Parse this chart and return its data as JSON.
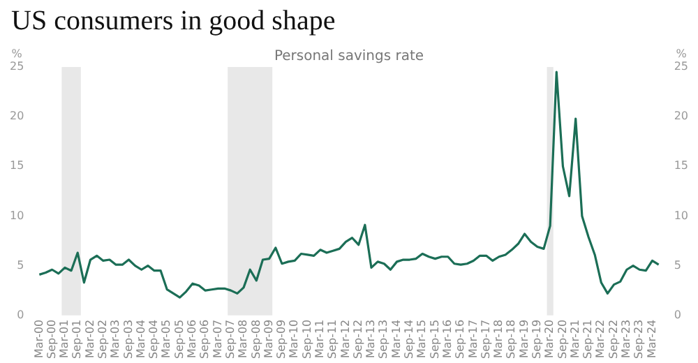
{
  "chart_data": {
    "type": "line",
    "title": "US consumers in good shape",
    "subtitle": "Personal savings rate",
    "ylabel": "%",
    "y2label": "%",
    "categories": [
      "Mar-00",
      null,
      "Sep-00",
      null,
      "Mar-01",
      null,
      "Sep-01",
      null,
      "Mar-02",
      null,
      "Sep-02",
      null,
      "Mar-03",
      null,
      "Sep-03",
      null,
      "Mar-04",
      null,
      "Sep-04",
      null,
      "Mar-05",
      null,
      "Sep-05",
      null,
      "Mar-06",
      null,
      "Sep-06",
      null,
      "Mar-07",
      null,
      "Sep-07",
      null,
      "Mar-08",
      null,
      "Sep-08",
      null,
      "Mar-09",
      null,
      "Sep-09",
      null,
      "Mar-10",
      null,
      "Sep-10",
      null,
      "Mar-11",
      null,
      "Sep-11",
      null,
      "Mar-12",
      null,
      "Sep-12",
      null,
      "Mar-13",
      null,
      "Sep-13",
      null,
      "Mar-14",
      null,
      "Sep-14",
      null,
      "Mar-15",
      null,
      "Sep-15",
      null,
      "Mar-16",
      null,
      "Sep-16",
      null,
      "Mar-17",
      null,
      "Sep-17",
      null,
      "Mar-18",
      null,
      "Sep-18",
      null,
      "Mar-19",
      null,
      "Sep-19",
      null,
      "Mar-20",
      null,
      "Sep-20",
      null,
      "Mar-21",
      null,
      "Sep-21",
      null,
      "Mar-22",
      null,
      "Sep-22",
      null,
      "Mar-23",
      null,
      "Sep-23",
      null,
      "Mar-24",
      null
    ],
    "series": [
      {
        "color": "#1b6e56",
        "values": [
          4.1,
          4.3,
          4.6,
          4.2,
          4.8,
          4.5,
          6.3,
          3.3,
          5.6,
          6.0,
          5.5,
          5.6,
          5.1,
          5.1,
          5.6,
          5.0,
          4.6,
          5.0,
          4.5,
          4.5,
          2.6,
          2.2,
          1.8,
          2.4,
          3.2,
          3.0,
          2.5,
          2.6,
          2.7,
          2.7,
          2.5,
          2.2,
          2.8,
          4.6,
          3.5,
          5.6,
          5.7,
          6.8,
          5.2,
          5.4,
          5.5,
          6.2,
          6.1,
          6.0,
          6.6,
          6.3,
          6.5,
          6.7,
          7.4,
          7.8,
          7.1,
          9.1,
          4.8,
          5.4,
          5.2,
          4.6,
          5.4,
          5.6,
          5.6,
          5.7,
          6.2,
          5.9,
          5.7,
          5.9,
          5.9,
          5.2,
          5.1,
          5.2,
          5.5,
          6.0,
          6.0,
          5.5,
          5.9,
          6.1,
          6.6,
          7.2,
          8.2,
          7.4,
          6.9,
          6.7,
          9.0,
          24.5,
          15.0,
          12.0,
          19.8,
          10.0,
          7.9,
          6.1,
          3.3,
          2.2,
          3.1,
          3.4,
          4.6,
          5.0,
          4.6,
          4.5,
          5.5,
          5.1
        ]
      }
    ],
    "ylim": [
      0,
      25
    ],
    "yticks": [
      0,
      5,
      10,
      15,
      20,
      25
    ],
    "y2lim": [
      0,
      25
    ],
    "y2ticks": [
      0,
      5,
      10,
      15,
      20,
      25
    ],
    "bands": [
      {
        "axis": "x",
        "from": "Mar-01",
        "to": "Sep-01",
        "color": "#e8e8e8"
      },
      {
        "axis": "x",
        "from": "Sep-07",
        "to": "Mar-09",
        "color": "#e8e8e8"
      },
      {
        "axis": "x",
        "from": "Mar-20",
        "to": "Mar-20",
        "color": "#e8e8e8"
      }
    ],
    "grid": false,
    "legend": false,
    "marker": "none",
    "line_style": "solid"
  }
}
